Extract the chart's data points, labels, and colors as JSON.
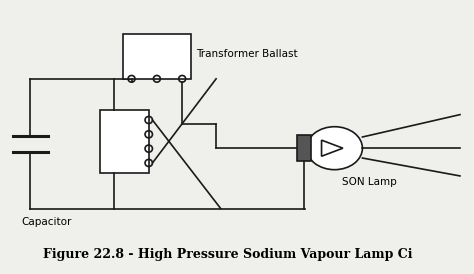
{
  "title": "Figure 22.8 - High Pressure Sodium Vapour Lamp Ci",
  "title_fontsize": 9,
  "bg_color": "#efefec",
  "line_color": "#1a1a1a",
  "label_capacitor": "Capacitor",
  "label_transformer": "Transformer Ballast",
  "label_lamp": "SON Lamp",
  "figsize": [
    4.74,
    2.74
  ],
  "dpi": 100,
  "xlim": [
    0,
    10
  ],
  "ylim": [
    0,
    6
  ]
}
